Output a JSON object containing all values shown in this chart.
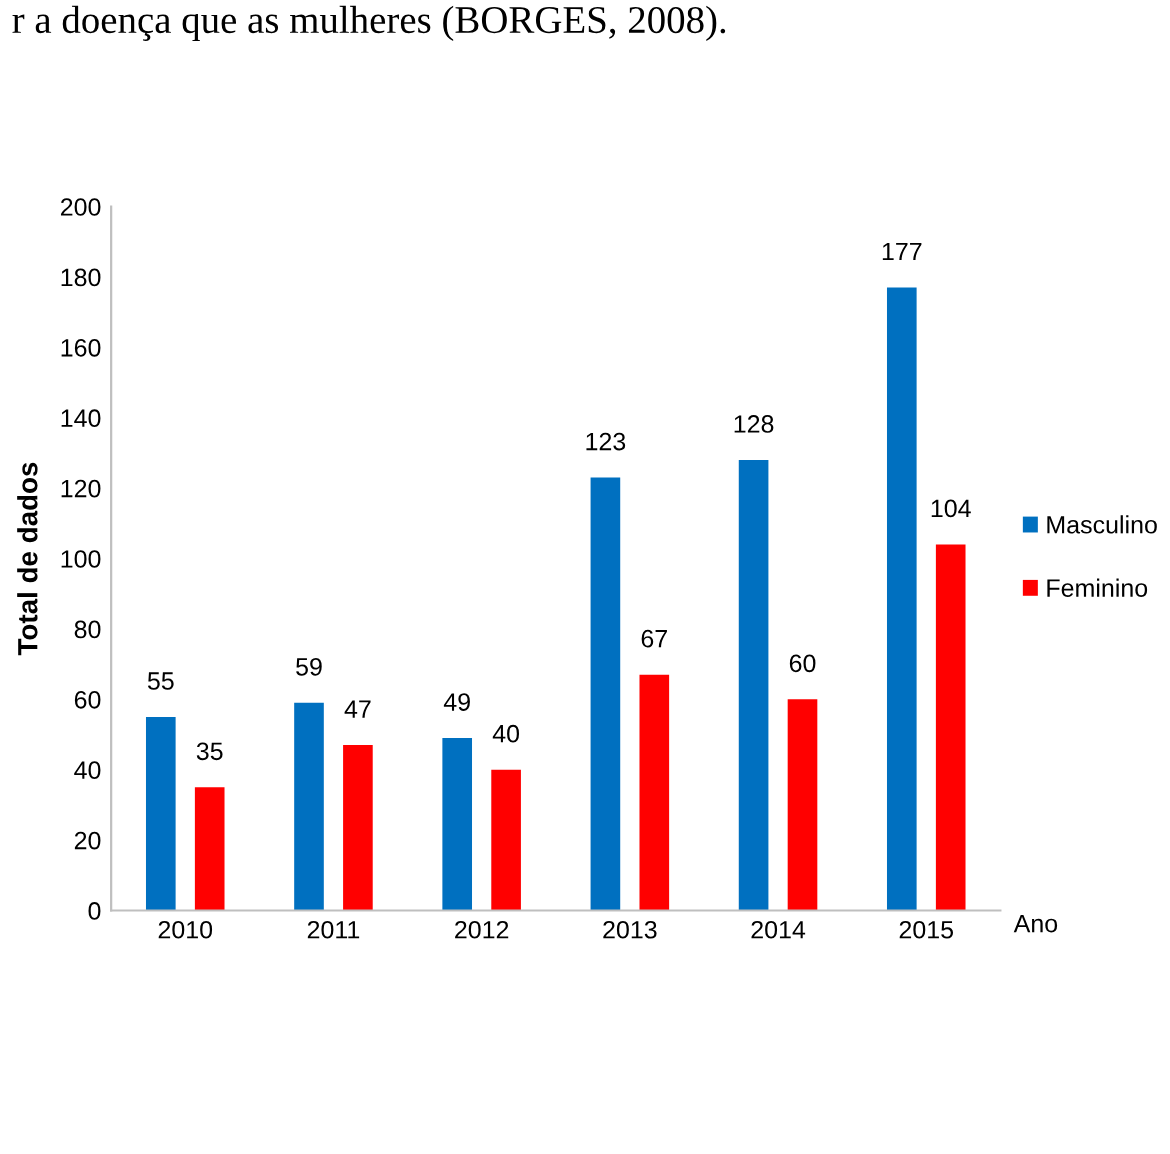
{
  "chart_data": {
    "type": "bar",
    "ylabel": "Total de dados",
    "xlabel": "Ano",
    "categories": [
      "2010",
      "2011",
      "2012",
      "2013",
      "2014",
      "2015"
    ],
    "series": [
      {
        "name": "Masculino",
        "color": "#0070c0",
        "values": [
          55,
          59,
          49,
          123,
          128,
          177
        ]
      },
      {
        "name": "Feminino",
        "color": "#ff0000",
        "values": [
          35,
          47,
          40,
          67,
          60,
          104
        ]
      }
    ],
    "ylim": [
      0,
      200
    ],
    "yticks": [
      0,
      20,
      40,
      60,
      80,
      100,
      120,
      140,
      160,
      180,
      200
    ],
    "data_labels": true,
    "grid": false,
    "legend": "right",
    "annotations": [
      "r a doença que as mulheres (BORGES, 2008)."
    ]
  }
}
